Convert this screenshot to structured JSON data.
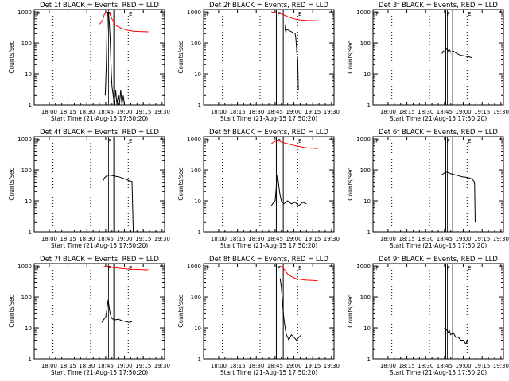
{
  "chart_data": {
    "type": "line",
    "layout": "3x3 grid of panels",
    "x_tick_labels": [
      "18:00",
      "18:15",
      "18:30",
      "18:45",
      "19:00",
      "19:15",
      "19:30"
    ],
    "x_tick_minutes": [
      0,
      15,
      30,
      45,
      60,
      75,
      90
    ],
    "x_range_minutes": [
      -12,
      92
    ],
    "xlabel": "Start Time (21-Aug-15 17:50:20)",
    "ylabel": "Counts/sec",
    "y_scale": "log",
    "y_tick_labels": [
      "1",
      "10",
      "100",
      "1000"
    ],
    "y_tick_values": [
      1,
      10,
      100,
      1000
    ],
    "y_range": [
      1,
      1200
    ],
    "series_colors": {
      "events": "#000000",
      "lld": "#ff0000"
    },
    "markers": {
      "dotted_lines_minutes": [
        3,
        33,
        63
      ],
      "box_start_minutes": 46,
      "box_end_minutes": 51.5,
      "label_left": "F",
      "label_right": "E",
      "label_left_minute": -10,
      "label_mid_minute": 46.8,
      "label_right_minute": 63.5
    },
    "panels": [
      {
        "title": "Det 1f BLACK = Events, RED = LLD",
        "events": [
          [
            44.6,
            2
          ],
          [
            45,
            5
          ],
          [
            45.5,
            20
          ],
          [
            46,
            200
          ],
          [
            46.5,
            900
          ],
          [
            47,
            1000
          ],
          [
            47.5,
            700
          ],
          [
            48,
            400
          ],
          [
            48.5,
            150
          ],
          [
            49,
            40
          ],
          [
            49.5,
            10
          ],
          [
            50,
            4
          ],
          [
            51,
            2
          ],
          [
            52,
            1
          ],
          [
            53,
            3
          ],
          [
            54,
            1
          ],
          [
            55,
            2
          ],
          [
            56,
            1
          ],
          [
            57,
            3
          ],
          [
            58,
            1
          ],
          [
            59,
            2
          ],
          [
            60,
            1
          ]
        ],
        "lld": [
          [
            40,
            400
          ],
          [
            42,
            500
          ],
          [
            43,
            600
          ],
          [
            44,
            850
          ],
          [
            45,
            900
          ],
          [
            46,
            1000
          ],
          [
            48,
            900
          ],
          [
            50,
            600
          ],
          [
            52,
            400
          ],
          [
            55,
            330
          ],
          [
            58,
            290
          ],
          [
            62,
            260
          ],
          [
            67,
            240
          ],
          [
            72,
            235
          ],
          [
            79,
            230
          ]
        ]
      },
      {
        "title": "Det 2f BLACK = Events, RED = LLD",
        "events": [
          [
            53,
            250
          ],
          [
            53.3,
            400
          ],
          [
            53.6,
            200
          ],
          [
            54,
            280
          ],
          [
            61,
            200
          ],
          [
            61.5,
            150
          ],
          [
            62,
            80
          ],
          [
            62.5,
            40
          ],
          [
            63,
            30
          ],
          [
            63.5,
            3
          ]
        ],
        "lld": [
          [
            42,
            1000
          ],
          [
            45,
            950
          ],
          [
            48,
            900
          ],
          [
            50,
            850
          ],
          [
            52,
            800
          ],
          [
            55,
            700
          ],
          [
            60,
            600
          ],
          [
            65,
            550
          ],
          [
            70,
            530
          ],
          [
            79,
            520
          ]
        ]
      },
      {
        "title": "Det 3f BLACK = Events, RED = LLD",
        "events": [
          [
            43,
            45
          ],
          [
            44,
            55
          ],
          [
            45,
            50
          ],
          [
            46,
            60
          ],
          [
            47,
            65
          ],
          [
            48,
            55
          ],
          [
            49,
            60
          ],
          [
            50,
            50
          ],
          [
            52,
            55
          ],
          [
            55,
            45
          ],
          [
            58,
            40
          ],
          [
            61,
            38
          ],
          [
            63,
            36
          ],
          [
            65,
            35
          ],
          [
            67,
            33
          ]
        ],
        "lld": []
      },
      {
        "title": "Det 4f BLACK = Events, RED = LLD",
        "events": [
          [
            43,
            45
          ],
          [
            44,
            55
          ],
          [
            45,
            60
          ],
          [
            46,
            65
          ],
          [
            48,
            68
          ],
          [
            50,
            66
          ],
          [
            52,
            63
          ],
          [
            55,
            60
          ],
          [
            58,
            55
          ],
          [
            61,
            50
          ],
          [
            62,
            48
          ],
          [
            63,
            46
          ],
          [
            64,
            44
          ],
          [
            65,
            43
          ],
          [
            66,
            42
          ],
          [
            67,
            1
          ]
        ],
        "lld": []
      },
      {
        "title": "Det 5f BLACK = Events, RED = LLD",
        "events": [
          [
            42,
            7
          ],
          [
            43,
            8
          ],
          [
            44,
            9
          ],
          [
            45,
            10
          ],
          [
            46,
            30
          ],
          [
            47,
            70
          ],
          [
            48,
            30
          ],
          [
            49,
            15
          ],
          [
            50,
            10
          ],
          [
            52,
            8
          ],
          [
            55,
            10
          ],
          [
            58,
            8
          ],
          [
            61,
            9
          ],
          [
            64,
            7
          ],
          [
            67,
            9
          ],
          [
            70,
            8
          ]
        ],
        "lld": [
          [
            42,
            700
          ],
          [
            44,
            800
          ],
          [
            46,
            850
          ],
          [
            48,
            900
          ],
          [
            50,
            800
          ],
          [
            52,
            750
          ],
          [
            55,
            700
          ],
          [
            60,
            620
          ],
          [
            65,
            560
          ],
          [
            70,
            520
          ],
          [
            75,
            500
          ],
          [
            79,
            490
          ]
        ]
      },
      {
        "title": "Det 6f BLACK = Events, RED = LLD",
        "events": [
          [
            43,
            70
          ],
          [
            45,
            80
          ],
          [
            47,
            85
          ],
          [
            50,
            75
          ],
          [
            53,
            70
          ],
          [
            56,
            65
          ],
          [
            59,
            60
          ],
          [
            62,
            58
          ],
          [
            65,
            55
          ],
          [
            67,
            50
          ],
          [
            68,
            45
          ],
          [
            69,
            40
          ],
          [
            69.5,
            2
          ]
        ],
        "lld": []
      },
      {
        "title": "Det 7f BLACK = Events, RED = LLD",
        "events": [
          [
            42,
            15
          ],
          [
            43,
            17
          ],
          [
            44,
            20
          ],
          [
            45,
            22
          ],
          [
            46,
            40
          ],
          [
            47,
            80
          ],
          [
            48,
            40
          ],
          [
            49,
            25
          ],
          [
            50,
            20
          ],
          [
            52,
            18
          ],
          [
            55,
            19
          ],
          [
            58,
            17
          ],
          [
            61,
            16
          ],
          [
            64,
            15
          ],
          [
            66,
            16
          ]
        ],
        "lld": [
          [
            42,
            900
          ],
          [
            44,
            950
          ],
          [
            46,
            1000
          ],
          [
            48,
            950
          ],
          [
            50,
            900
          ],
          [
            52,
            880
          ],
          [
            55,
            850
          ],
          [
            58,
            820
          ],
          [
            62,
            800
          ],
          [
            66,
            780
          ],
          [
            70,
            770
          ],
          [
            75,
            760
          ],
          [
            79,
            750
          ]
        ]
      },
      {
        "title": "Det 8f BLACK = Events, RED = LLD",
        "events": [
          [
            49,
            400
          ],
          [
            50,
            200
          ],
          [
            51,
            60
          ],
          [
            52,
            20
          ],
          [
            53,
            10
          ],
          [
            54,
            6
          ],
          [
            55,
            5
          ],
          [
            56,
            4
          ],
          [
            57,
            5
          ],
          [
            58,
            6
          ],
          [
            60,
            5
          ],
          [
            62,
            4
          ],
          [
            64,
            5
          ],
          [
            66,
            6
          ]
        ],
        "lld": [
          [
            49,
            1000
          ],
          [
            51,
            900
          ],
          [
            53,
            700
          ],
          [
            55,
            550
          ],
          [
            58,
            450
          ],
          [
            61,
            400
          ],
          [
            64,
            380
          ],
          [
            67,
            360
          ],
          [
            70,
            350
          ],
          [
            75,
            340
          ],
          [
            79,
            330
          ]
        ]
      },
      {
        "title": "Det 9f BLACK = Events, RED = LLD",
        "events": [
          [
            45,
            10
          ],
          [
            46,
            8
          ],
          [
            47,
            9
          ],
          [
            48,
            7
          ],
          [
            49,
            8
          ],
          [
            50,
            6
          ],
          [
            52,
            7
          ],
          [
            54,
            5
          ],
          [
            56,
            5
          ],
          [
            58,
            4
          ],
          [
            60,
            4
          ],
          [
            62,
            3
          ],
          [
            63,
            4
          ],
          [
            64,
            3
          ]
        ],
        "lld": []
      }
    ]
  }
}
